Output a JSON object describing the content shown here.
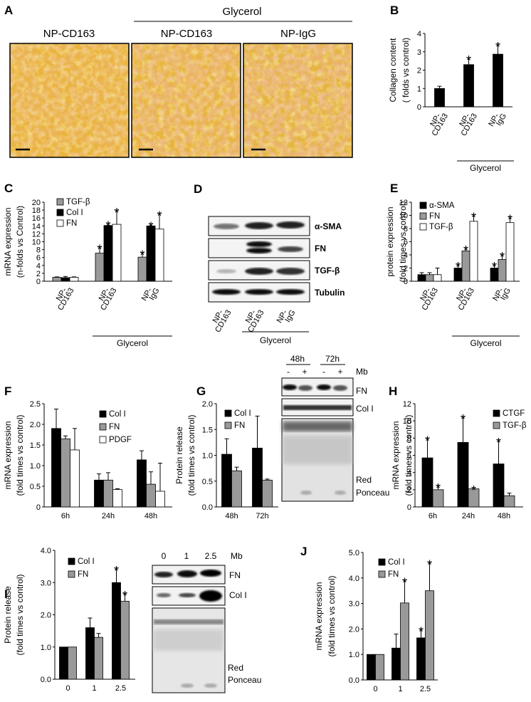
{
  "panel_A": {
    "letter": "A",
    "group_label": "Glycerol",
    "images": [
      {
        "title": "NP-CD163"
      },
      {
        "title": "NP-CD163"
      },
      {
        "title": "NP-IgG"
      }
    ]
  },
  "panel_D": {
    "letter": "D",
    "bands": [
      "α-SMA",
      "FN",
      "TGF-β",
      "Tubulin"
    ],
    "lanes": [
      "NP-CD163",
      "NP-CD163",
      "NP-IgG"
    ],
    "group_label": "Glycerol"
  },
  "panel_G_blot": {
    "times": [
      "48h",
      "72h"
    ],
    "signs": [
      "-",
      "+",
      "-",
      "+"
    ],
    "mb_label": "Mb",
    "bands": [
      "FN",
      "Col I"
    ],
    "stain_label_1": "Red",
    "stain_label_2": "Ponceau"
  },
  "panel_I_blot": {
    "lanes": [
      "0",
      "1",
      "2.5"
    ],
    "mb_label": "Mb",
    "bands": [
      "FN",
      "Col I"
    ],
    "stain_label_1": "Red",
    "stain_label_2": "Ponceau"
  },
  "chart_data": [
    {
      "id": "B",
      "letter": "B",
      "type": "bar",
      "ylabel_1": "Collagen content",
      "ylabel_2": "( folds vs control)",
      "ylim": [
        0,
        4
      ],
      "yticks": [
        "0",
        "1",
        "2",
        "3",
        "4"
      ],
      "categories": [
        [
          "NP-",
          "CD163"
        ],
        [
          "NP-",
          "CD163"
        ],
        [
          "NP-",
          "IgG"
        ]
      ],
      "group_label": "Glycerol",
      "group_from": 1,
      "series": [
        {
          "color": "#000000",
          "values": [
            1.0,
            2.3,
            2.87
          ],
          "errors": [
            0.12,
            0.38,
            0.55
          ],
          "stars": [
            false,
            true,
            true
          ]
        }
      ]
    },
    {
      "id": "C",
      "letter": "C",
      "type": "bar",
      "ylabel_1": "mRNA expression",
      "ylabel_2": "(n-folds vs Control)",
      "ylim": [
        0,
        20
      ],
      "yticks": [
        "0",
        "2",
        "4",
        "6",
        "8",
        "10",
        "12",
        "14",
        "16",
        "18",
        "20"
      ],
      "categories": [
        [
          "NP-",
          "CD163"
        ],
        [
          "NP-",
          "CD163"
        ],
        [
          "NP-",
          "IgG"
        ]
      ],
      "group_label": "Glycerol",
      "group_from": 1,
      "series": [
        {
          "name": "TGF-β",
          "color": "#999999",
          "values": [
            1.0,
            7.1,
            6.1
          ],
          "errors": [
            0.1,
            1.6,
            1.2
          ],
          "stars": [
            false,
            true,
            true
          ]
        },
        {
          "name": "Col I",
          "color": "#000000",
          "values": [
            0.9,
            14.1,
            14.0
          ],
          "errors": [
            0.3,
            0.6,
            0.5
          ],
          "stars": [
            false,
            true,
            true
          ]
        },
        {
          "name": "FN",
          "color": "#ffffff",
          "values": [
            1.0,
            14.4,
            13.2
          ],
          "errors": [
            0.1,
            3.6,
            4.0
          ],
          "stars": [
            false,
            true,
            true
          ]
        }
      ]
    },
    {
      "id": "E",
      "letter": "E",
      "type": "bar",
      "ylabel_1": "protein expression",
      "ylabel_2": "(fold times vs control)",
      "ylim": [
        0,
        12
      ],
      "yticks": [
        "0",
        "2",
        "4",
        "6",
        "8",
        "10",
        "12"
      ],
      "categories": [
        [
          "NP-",
          "CD163"
        ],
        [
          "NP-",
          "CD163"
        ],
        [
          "NP-",
          "IgG"
        ]
      ],
      "group_label": "Glycerol",
      "group_from": 1,
      "series": [
        {
          "name": "α-SMA",
          "color": "#000000",
          "values": [
            1.0,
            2.0,
            2.0
          ],
          "errors": [
            0.3,
            0.6,
            0.6
          ],
          "stars": [
            false,
            true,
            true
          ]
        },
        {
          "name": "FN",
          "color": "#999999",
          "values": [
            1.0,
            4.6,
            3.3
          ],
          "errors": [
            0.3,
            0.5,
            0.8
          ],
          "stars": [
            false,
            true,
            true
          ]
        },
        {
          "name": "TGF-β",
          "color": "#ffffff",
          "values": [
            1.0,
            9.1,
            8.9
          ],
          "errors": [
            1.0,
            1.0,
            0.9
          ],
          "stars": [
            false,
            true,
            true
          ]
        }
      ]
    },
    {
      "id": "F",
      "letter": "F",
      "type": "bar",
      "ylabel_1": "mRNA expression",
      "ylabel_2": "(fold times vs control)",
      "ylim": [
        0,
        2.5
      ],
      "yticks": [
        "0",
        "0.5",
        "1.0",
        "1.5",
        "2.0",
        "2.5"
      ],
      "categories": [
        [
          "6h"
        ],
        [
          "24h"
        ],
        [
          "48h"
        ]
      ],
      "series": [
        {
          "name": "Col I",
          "color": "#000000",
          "values": [
            1.9,
            0.65,
            1.14
          ],
          "errors": [
            0.47,
            0.15,
            0.22
          ],
          "stars": [
            false,
            false,
            false
          ]
        },
        {
          "name": "FN",
          "color": "#999999",
          "values": [
            1.65,
            0.65,
            0.55
          ],
          "errors": [
            0.07,
            0.18,
            0.3
          ],
          "stars": [
            false,
            false,
            false
          ]
        },
        {
          "name": "PDGF",
          "color": "#ffffff",
          "values": [
            1.38,
            0.42,
            0.38
          ],
          "errors": [
            0.52,
            0.02,
            0.68
          ],
          "stars": [
            false,
            false,
            false
          ]
        }
      ]
    },
    {
      "id": "G",
      "letter": "G",
      "type": "bar",
      "ylabel_1": "Protein release",
      "ylabel_2": "(fold times vs control)",
      "ylim": [
        0,
        2.0
      ],
      "yticks": [
        "0.0",
        "0.5",
        "1.0",
        "1.5",
        "2.0"
      ],
      "categories": [
        [
          "48h"
        ],
        [
          "72h"
        ]
      ],
      "series": [
        {
          "name": "Col I",
          "color": "#000000",
          "values": [
            1.02,
            1.14
          ],
          "errors": [
            0.3,
            0.62
          ],
          "stars": [
            false,
            false
          ]
        },
        {
          "name": "FN",
          "color": "#999999",
          "values": [
            0.7,
            0.52
          ],
          "errors": [
            0.07,
            0.02
          ],
          "stars": [
            false,
            false
          ]
        }
      ]
    },
    {
      "id": "H",
      "letter": "H",
      "type": "bar",
      "ylabel_1": "mRNA expression",
      "ylabel_2": "(fold times vs control)",
      "ylim": [
        0,
        12
      ],
      "yticks": [
        "0",
        "2",
        "4",
        "6",
        "8",
        "10",
        "12"
      ],
      "categories": [
        [
          "6h"
        ],
        [
          "24h"
        ],
        [
          "48h"
        ]
      ],
      "series": [
        {
          "name": "CTGF",
          "color": "#000000",
          "values": [
            5.7,
            7.5,
            5.0
          ],
          "errors": [
            2.3,
            3.0,
            2.8
          ],
          "stars": [
            true,
            true,
            true
          ]
        },
        {
          "name": "TGF-β",
          "color": "#999999",
          "values": [
            2.0,
            2.1,
            1.3
          ],
          "errors": [
            0.5,
            0.15,
            0.3
          ],
          "stars": [
            true,
            true,
            false
          ]
        }
      ]
    },
    {
      "id": "I",
      "letter": "I",
      "type": "bar",
      "ylabel_1": "Protein release",
      "ylabel_2": "(fold times vs control)",
      "ylim": [
        0,
        4.0
      ],
      "yticks": [
        "0.0",
        "1.0",
        "2.0",
        "3.0",
        "4.0"
      ],
      "categories": [
        [
          "0"
        ],
        [
          "1"
        ],
        [
          "2.5"
        ]
      ],
      "series": [
        {
          "name": "Col I",
          "color": "#000000",
          "values": [
            1.0,
            1.6,
            3.0
          ],
          "errors": [
            0.0,
            0.3,
            0.45
          ],
          "stars": [
            false,
            false,
            true
          ]
        },
        {
          "name": "FN",
          "color": "#999999",
          "values": [
            1.0,
            1.3,
            2.42
          ],
          "errors": [
            0.0,
            0.12,
            0.25
          ],
          "stars": [
            false,
            false,
            true
          ]
        }
      ]
    },
    {
      "id": "J",
      "letter": "J",
      "type": "bar",
      "ylabel_1": "mRNA expression",
      "ylabel_2": "(fold times vs control)",
      "ylim": [
        0,
        5.0
      ],
      "yticks": [
        "0.0",
        "1.0",
        "2.0",
        "3.0",
        "4.0",
        "5.0"
      ],
      "categories": [
        [
          "0"
        ],
        [
          "1"
        ],
        [
          "2.5"
        ]
      ],
      "series": [
        {
          "name": "Col I",
          "color": "#000000",
          "values": [
            1.0,
            1.25,
            1.65
          ],
          "errors": [
            0.0,
            0.55,
            0.35
          ],
          "stars": [
            false,
            false,
            true
          ]
        },
        {
          "name": "FN",
          "color": "#999999",
          "values": [
            1.0,
            3.02,
            3.5
          ],
          "errors": [
            0.0,
            0.9,
            1.12
          ],
          "stars": [
            false,
            true,
            true
          ]
        }
      ]
    }
  ]
}
